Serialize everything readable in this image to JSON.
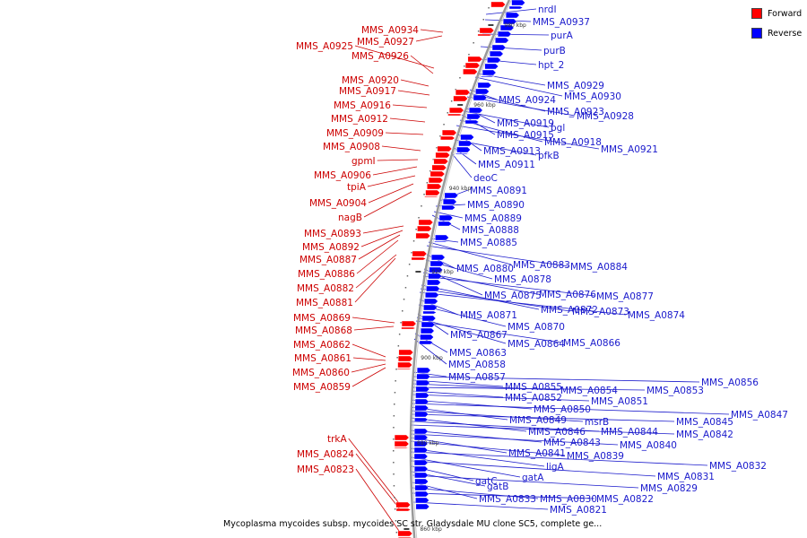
{
  "caption": "Mycoplasma mycoides subsp. mycoides SC str. Gladysdale MU clone SC5, complete ge...",
  "legend": {
    "forward": {
      "label": "Forward",
      "color": "#ff0000"
    },
    "reverse": {
      "label": "Reverse",
      "color": "#0000ff"
    }
  },
  "colors": {
    "forward_text": "#cc0000",
    "reverse_text": "#1a1acc",
    "backbone": "#999999"
  },
  "scale_marks": [
    "980 kbp",
    "960 kbp",
    "940 kbp",
    "920 kbp",
    "900 kbp",
    "880 kbp",
    "860 kbp"
  ],
  "forward_genes": [
    "MMS_A0934",
    "MMS_A0927",
    "MMS_A0925",
    "MMS_A0926",
    "MMS_A0920",
    "MMS_A0917",
    "MMS_A0916",
    "MMS_A0912",
    "MMS_A0909",
    "MMS_A0908",
    "gpmI",
    "MMS_A0906",
    "tpiA",
    "MMS_A0904",
    "nagB",
    "MMS_A0893",
    "MMS_A0892",
    "MMS_A0887",
    "MMS_A0886",
    "MMS_A0882",
    "MMS_A0881",
    "MMS_A0869",
    "MMS_A0868",
    "MMS_A0862",
    "MMS_A0861",
    "MMS_A0860",
    "MMS_A0859",
    "trkA",
    "MMS_A0824",
    "MMS_A0823"
  ],
  "reverse_genes": [
    "nrdI",
    "MMS_A0937",
    "purA",
    "purB",
    "hpt_2",
    "MMS_A0929",
    "MMS_A0930",
    "MMS_A0924",
    "MMS_A0923",
    "MMS_A0928",
    "MMS_A0919",
    "bgl",
    "MMS_A0915",
    "MMS_A0918",
    "MMS_A0913",
    "MMS_A0921",
    "pfkB",
    "MMS_A0911",
    "deoC",
    "MMS_A0891",
    "MMS_A0890",
    "MMS_A0889",
    "MMS_A0888",
    "MMS_A0885",
    "MMS_A0883",
    "MMS_A0884",
    "MMS_A0880",
    "MMS_A0878",
    "MMS_A0875",
    "MMS_A0876",
    "MMS_A0877",
    "MMS_A0872",
    "MMS_A0873",
    "MMS_A0874",
    "MMS_A0871",
    "MMS_A0870",
    "MMS_A0867",
    "MMS_A0864",
    "MMS_A0866",
    "MMS_A0863",
    "MMS_A0858",
    "MMS_A0857",
    "MMS_A0856",
    "MMS_A0855",
    "MMS_A0854",
    "MMS_A0853",
    "MMS_A0852",
    "MMS_A0851",
    "MMS_A0850",
    "MMS_A0847",
    "MMS_A0849",
    "msrB",
    "MMS_A0845",
    "MMS_A0846",
    "MMS_A0844",
    "MMS_A0842",
    "MMS_A0843",
    "MMS_A0840",
    "MMS_A0841",
    "MMS_A0839",
    "ligA",
    "MMS_A0832",
    "gatA",
    "MMS_A0831",
    "gatC",
    "gatB",
    "MMS_A0829",
    "MMS_A0833",
    "MMS_A0830",
    "MMS_A0822",
    "MMS_A0821"
  ]
}
